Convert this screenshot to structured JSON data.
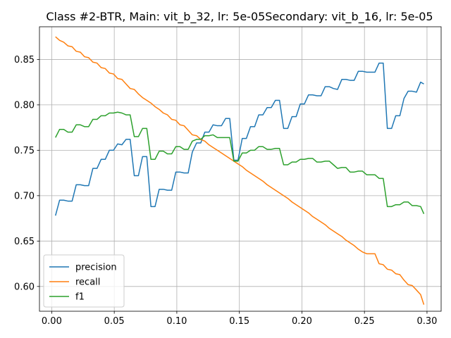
{
  "chart_data": {
    "type": "line",
    "title": "Class #2-BTR, Main: vit_b_32, lr: 5e-05Secondary: vit_b_16, lr: 5e-05",
    "xlabel": "",
    "ylabel": "",
    "xlim": [
      -0.0098,
      0.3113
    ],
    "ylim": [
      0.5727,
      0.886
    ],
    "xticks": [
      0.0,
      0.05,
      0.1,
      0.15,
      0.2,
      0.25,
      0.3
    ],
    "xtick_labels": [
      "0.00",
      "0.05",
      "0.10",
      "0.15",
      "0.20",
      "0.25",
      "0.30"
    ],
    "yticks": [
      0.6,
      0.65,
      0.7,
      0.75,
      0.8,
      0.85
    ],
    "ytick_labels": [
      "0.60",
      "0.65",
      "0.70",
      "0.75",
      "0.80",
      "0.85"
    ],
    "grid": true,
    "legend_position": "lower-left",
    "x": [
      0.003,
      0.0063,
      0.0096,
      0.0129,
      0.0163,
      0.0196,
      0.0229,
      0.0262,
      0.0295,
      0.0329,
      0.0362,
      0.0395,
      0.0428,
      0.0461,
      0.0494,
      0.0527,
      0.0561,
      0.0594,
      0.0627,
      0.066,
      0.0693,
      0.0726,
      0.076,
      0.0793,
      0.0826,
      0.0859,
      0.0892,
      0.0925,
      0.0959,
      0.0992,
      0.1025,
      0.1058,
      0.1091,
      0.1124,
      0.1158,
      0.1191,
      0.1224,
      0.1257,
      0.129,
      0.1324,
      0.1357,
      0.139,
      0.1423,
      0.1456,
      0.1489,
      0.1523,
      0.1556,
      0.1589,
      0.1622,
      0.1655,
      0.1688,
      0.1722,
      0.1755,
      0.1788,
      0.1821,
      0.1854,
      0.1887,
      0.1921,
      0.1954,
      0.1987,
      0.202,
      0.2053,
      0.2086,
      0.212,
      0.2153,
      0.2186,
      0.2219,
      0.2252,
      0.2285,
      0.2319,
      0.2352,
      0.2385,
      0.2418,
      0.2451,
      0.2484,
      0.2518,
      0.2551,
      0.2584,
      0.2617,
      0.265,
      0.2683,
      0.2717,
      0.275,
      0.2783,
      0.2816,
      0.2849,
      0.2882,
      0.2916,
      0.2949,
      0.2975
    ],
    "series": [
      {
        "name": "precision",
        "color": "#1f77b4",
        "values": [
          0.678,
          0.695,
          0.695,
          0.694,
          0.694,
          0.712,
          0.712,
          0.711,
          0.711,
          0.73,
          0.73,
          0.74,
          0.74,
          0.75,
          0.75,
          0.757,
          0.756,
          0.762,
          0.762,
          0.722,
          0.722,
          0.743,
          0.743,
          0.688,
          0.688,
          0.707,
          0.707,
          0.706,
          0.706,
          0.726,
          0.726,
          0.725,
          0.725,
          0.748,
          0.758,
          0.758,
          0.77,
          0.77,
          0.778,
          0.777,
          0.777,
          0.785,
          0.785,
          0.739,
          0.739,
          0.763,
          0.763,
          0.776,
          0.776,
          0.789,
          0.789,
          0.797,
          0.797,
          0.805,
          0.805,
          0.774,
          0.774,
          0.787,
          0.787,
          0.801,
          0.801,
          0.811,
          0.811,
          0.81,
          0.81,
          0.82,
          0.82,
          0.818,
          0.817,
          0.828,
          0.828,
          0.827,
          0.827,
          0.837,
          0.837,
          0.836,
          0.836,
          0.836,
          0.846,
          0.846,
          0.774,
          0.774,
          0.788,
          0.788,
          0.807,
          0.815,
          0.815,
          0.814,
          0.825,
          0.823
        ]
      },
      {
        "name": "recall",
        "color": "#ff7f0e",
        "values": [
          0.875,
          0.871,
          0.869,
          0.865,
          0.864,
          0.859,
          0.858,
          0.853,
          0.852,
          0.847,
          0.846,
          0.841,
          0.84,
          0.835,
          0.834,
          0.829,
          0.828,
          0.823,
          0.818,
          0.817,
          0.812,
          0.808,
          0.805,
          0.802,
          0.798,
          0.795,
          0.791,
          0.789,
          0.784,
          0.783,
          0.778,
          0.777,
          0.772,
          0.767,
          0.766,
          0.762,
          0.76,
          0.756,
          0.753,
          0.75,
          0.747,
          0.744,
          0.741,
          0.738,
          0.735,
          0.732,
          0.728,
          0.725,
          0.722,
          0.719,
          0.716,
          0.712,
          0.709,
          0.706,
          0.703,
          0.7,
          0.697,
          0.693,
          0.69,
          0.687,
          0.684,
          0.681,
          0.677,
          0.674,
          0.671,
          0.668,
          0.664,
          0.661,
          0.658,
          0.655,
          0.651,
          0.648,
          0.645,
          0.641,
          0.638,
          0.636,
          0.636,
          0.636,
          0.625,
          0.624,
          0.619,
          0.618,
          0.614,
          0.613,
          0.607,
          0.602,
          0.601,
          0.596,
          0.591,
          0.58
        ]
      },
      {
        "name": "f1",
        "color": "#2ca02c",
        "values": [
          0.764,
          0.773,
          0.773,
          0.77,
          0.77,
          0.778,
          0.778,
          0.776,
          0.776,
          0.784,
          0.784,
          0.788,
          0.788,
          0.791,
          0.791,
          0.792,
          0.791,
          0.789,
          0.789,
          0.765,
          0.765,
          0.774,
          0.774,
          0.74,
          0.74,
          0.749,
          0.749,
          0.746,
          0.746,
          0.754,
          0.754,
          0.751,
          0.751,
          0.76,
          0.762,
          0.762,
          0.766,
          0.766,
          0.767,
          0.764,
          0.764,
          0.764,
          0.764,
          0.738,
          0.738,
          0.747,
          0.747,
          0.75,
          0.75,
          0.754,
          0.754,
          0.751,
          0.751,
          0.752,
          0.752,
          0.734,
          0.734,
          0.737,
          0.737,
          0.74,
          0.74,
          0.741,
          0.741,
          0.737,
          0.737,
          0.738,
          0.738,
          0.734,
          0.73,
          0.731,
          0.731,
          0.726,
          0.726,
          0.727,
          0.727,
          0.723,
          0.723,
          0.723,
          0.719,
          0.719,
          0.688,
          0.688,
          0.69,
          0.69,
          0.693,
          0.693,
          0.689,
          0.689,
          0.688,
          0.68
        ]
      }
    ]
  }
}
